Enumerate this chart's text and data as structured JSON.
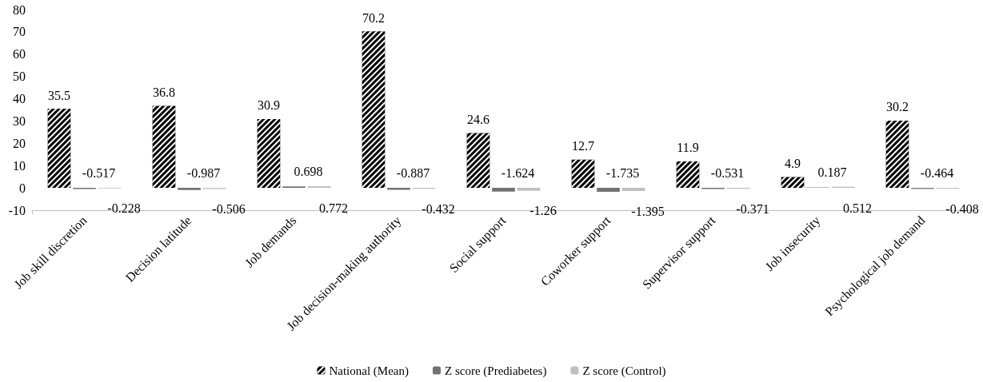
{
  "chart_data": {
    "type": "bar",
    "categories": [
      "Job skill discretion",
      "Decision latitude",
      "Job demands",
      "Job decision-making authority",
      "Social support",
      "Coworker support",
      "Supervisor support",
      "Job insecurity",
      "Psychological job demand"
    ],
    "series": [
      {
        "name": "National (Mean)",
        "color": "#000000",
        "values": [
          35.5,
          36.8,
          30.9,
          70.2,
          24.6,
          12.7,
          11.9,
          4.9,
          30.2
        ]
      },
      {
        "name": "Z score (Prediabetes)",
        "color": "#767171",
        "values": [
          -0.517,
          -0.987,
          0.698,
          -0.887,
          -1.624,
          -1.735,
          -0.531,
          0.187,
          -0.464
        ]
      },
      {
        "name": "Z score (Control)",
        "color": "#bfbfbf",
        "values": [
          -0.228,
          -0.506,
          0.772,
          -0.432,
          -1.26,
          -1.395,
          -0.371,
          0.512,
          -0.408
        ]
      }
    ],
    "ylim": [
      -10,
      80
    ],
    "yticks": [
      -10,
      0,
      10,
      20,
      30,
      40,
      50,
      60,
      70,
      80
    ],
    "grid": false,
    "legend": "bottom",
    "data_labels": true
  }
}
